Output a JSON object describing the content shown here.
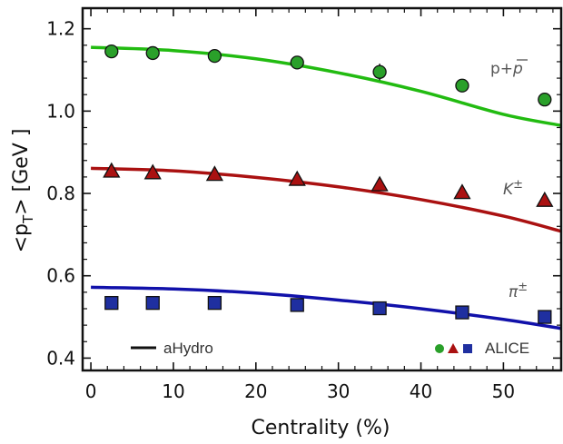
{
  "chart_data": {
    "type": "scatter",
    "xlabel": "Centrality  (%)",
    "ylabel": "<p",
    "ylabel_sub": "T",
    "ylabel_tail": "> [GeV ]",
    "xlim": [
      -1,
      57
    ],
    "ylim": [
      0.37,
      1.25
    ],
    "x_ticks": [
      0,
      10,
      20,
      30,
      40,
      50
    ],
    "y_ticks": [
      0.4,
      0.6,
      0.8,
      1.0,
      1.2
    ],
    "y_tick_labels": [
      "0.4",
      "0.6",
      "0.8",
      "1.0",
      "1.2"
    ],
    "grid": false,
    "legend": {
      "line_label": "aHydro",
      "points_label": "ALICE",
      "placement": "bottom"
    },
    "series": [
      {
        "name": "p+p̄",
        "label_main": "p+",
        "label_bar": "p",
        "color": "#2aa02a",
        "marker": "circle",
        "x": [
          2.5,
          7.5,
          15,
          25,
          35,
          45,
          55
        ],
        "y": [
          1.145,
          1.141,
          1.134,
          1.118,
          1.095,
          1.062,
          1.028
        ],
        "yerr": [
          0.008,
          0.008,
          0.008,
          0.015,
          0.02,
          0.016,
          0.008
        ],
        "curve": {
          "x": [
            0,
            10,
            20,
            30,
            40,
            50,
            57
          ],
          "y": [
            1.155,
            1.147,
            1.127,
            1.093,
            1.048,
            0.992,
            0.965
          ]
        },
        "curve_color": "#22bb11"
      },
      {
        "name": "K±",
        "label_main": "K",
        "label_sup": "±",
        "color": "#aa1111",
        "marker": "triangle",
        "x": [
          2.5,
          7.5,
          15,
          25,
          35,
          45,
          55
        ],
        "y": [
          0.853,
          0.849,
          0.845,
          0.833,
          0.82,
          0.801,
          0.782
        ],
        "yerr": [
          0,
          0,
          0,
          0,
          0,
          0,
          0
        ],
        "curve": {
          "x": [
            0,
            10,
            20,
            30,
            40,
            50,
            57
          ],
          "y": [
            0.861,
            0.855,
            0.839,
            0.816,
            0.785,
            0.745,
            0.708
          ]
        },
        "curve_color": "#aa1111"
      },
      {
        "name": "π±",
        "label_main": "π",
        "label_sup": "±",
        "color": "#1f2fa0",
        "marker": "square",
        "x": [
          2.5,
          7.5,
          15,
          25,
          35,
          45,
          55
        ],
        "y": [
          0.534,
          0.534,
          0.534,
          0.529,
          0.521,
          0.511,
          0.5
        ],
        "yerr": [
          0,
          0,
          0,
          0,
          0,
          0,
          0
        ],
        "curve": {
          "x": [
            0,
            10,
            20,
            30,
            40,
            50,
            57
          ],
          "y": [
            0.572,
            0.568,
            0.558,
            0.541,
            0.52,
            0.494,
            0.472
          ]
        },
        "curve_color": "#1111aa"
      }
    ]
  }
}
